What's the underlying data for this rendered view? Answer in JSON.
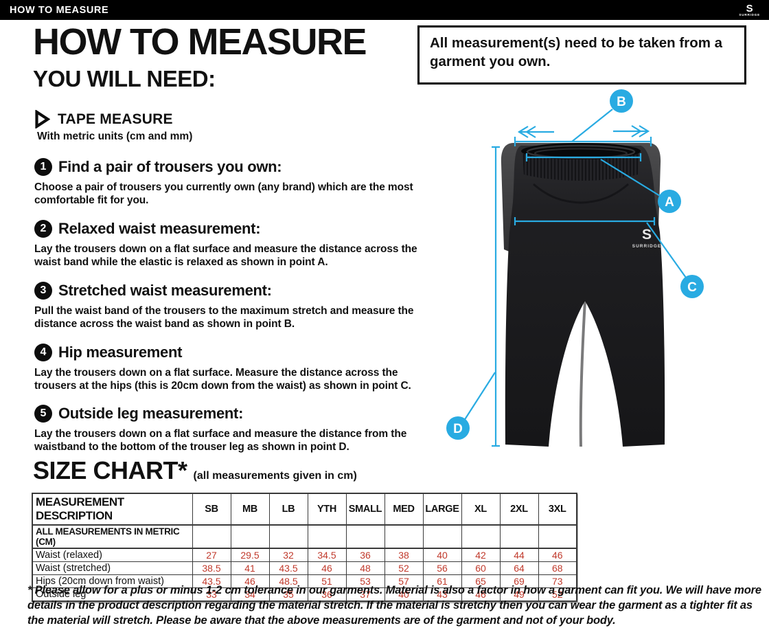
{
  "top_bar": {
    "title": "HOW TO MEASURE",
    "brand_mark": "S",
    "brand": "SURRIDGE"
  },
  "page": {
    "title": "HOW TO MEASURE",
    "subtitle": "YOU WILL NEED:"
  },
  "notice": {
    "text": "All measurement(s) need to be taken from a garment you own."
  },
  "tools": {
    "name": "TAPE MEASURE",
    "detail": "With metric units (cm and mm)"
  },
  "steps": [
    {
      "num": "1",
      "title": "Find a pair of trousers you own:",
      "body": "Choose a pair of trousers you currently own (any brand) which are the most comfortable fit for you."
    },
    {
      "num": "2",
      "title": "Relaxed waist measurement:",
      "body": "Lay the trousers down on a flat surface and measure the distance across the waist band while the elastic is relaxed as shown in point A."
    },
    {
      "num": "3",
      "title": "Stretched waist measurement:",
      "body": "Pull the waist band of the trousers to the maximum stretch and measure the distance across the waist band as shown in point B."
    },
    {
      "num": "4",
      "title": "Hip measurement",
      "body": "Lay the trousers down on a flat surface. Measure the distance across the trousers at the hips (this is 20cm down from the waist)  as shown in point C."
    },
    {
      "num": "5",
      "title": "Outside leg measurement:",
      "body": "Lay the trousers down on a flat surface and measure the distance from the waistband to the bottom of the trouser  leg as shown in point D."
    }
  ],
  "size_chart": {
    "title": "SIZE CHART*",
    "note": "(all measurements given in cm)",
    "header": [
      "MEASUREMENT DESCRIPTION",
      "SB",
      "MB",
      "LB",
      "YTH",
      "SMALL",
      "MED",
      "LARGE",
      "XL",
      "2XL",
      "3XL"
    ],
    "subheader": "ALL MEASUREMENTS IN METRIC (CM)",
    "rows": [
      {
        "label": "Waist (relaxed)",
        "values": [
          "27",
          "29.5",
          "32",
          "34.5",
          "36",
          "38",
          "40",
          "42",
          "44",
          "46"
        ]
      },
      {
        "label": "Waist (stretched)",
        "values": [
          "38.5",
          "41",
          "43.5",
          "46",
          "48",
          "52",
          "56",
          "60",
          "64",
          "68"
        ]
      },
      {
        "label": "Hips (20cm down from waist)",
        "values": [
          "43.5",
          "46",
          "48.5",
          "51",
          "53",
          "57",
          "61",
          "65",
          "69",
          "73"
        ]
      },
      {
        "label": "Outside leg",
        "values": [
          "33",
          "34",
          "35",
          "36",
          "37",
          "40",
          "43",
          "46",
          "49",
          "52"
        ]
      }
    ],
    "value_color": "#c0392b"
  },
  "diagram": {
    "labels": [
      "A",
      "B",
      "C",
      "D"
    ],
    "garment_logo_mark": "S",
    "garment_logo": "SURRIDGE",
    "annotation_color": "#29abe2"
  },
  "footnote": "* Please allow for a plus or minus 1-2 cm tolerance in our garments. Material is also a factor in how a garment can fit you. We will have more details in the product description regarding the material stretch.  If the material is stretchy then you can wear the garment as a tighter fit as the material will stretch.  Please be aware that the above measurements are of the garment and not of your body.",
  "colors": {
    "accent_blue": "#29abe2",
    "value_red": "#c0392b",
    "bar_black": "#000000"
  }
}
